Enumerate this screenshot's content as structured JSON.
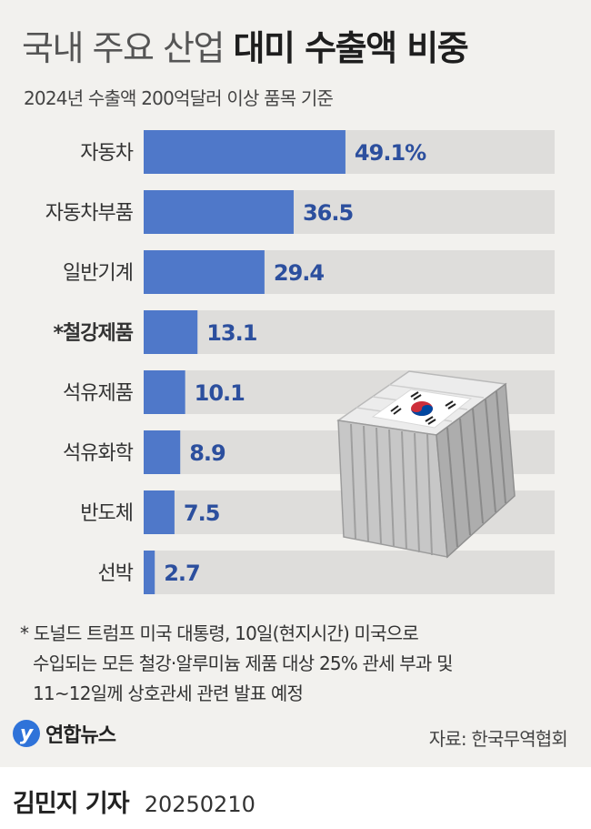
{
  "header": {
    "title_light": "국내 주요 산업",
    "title_bold": "대미 수출액 비중",
    "subtitle": "2024년 수출액 200억달러 이상 품목 기준"
  },
  "chart_data": {
    "type": "bar",
    "orientation": "horizontal",
    "categories": [
      "자동차",
      "자동차부품",
      "일반기계",
      "*철강제품",
      "석유제품",
      "석유화학",
      "반도체",
      "선박"
    ],
    "values": [
      49.1,
      36.5,
      29.4,
      13.1,
      10.1,
      8.9,
      7.5,
      2.7
    ],
    "value_labels": [
      "49.1%",
      "36.5",
      "29.4",
      "13.1",
      "10.1",
      "8.9",
      "7.5",
      "2.7"
    ],
    "highlighted": [
      false,
      false,
      false,
      true,
      false,
      false,
      false,
      false
    ],
    "xlim": [
      0,
      100
    ],
    "grid": false,
    "colors": {
      "bar": "#4f78c9",
      "track": "#dedddb",
      "value_text": "#2c4f9e"
    }
  },
  "note": {
    "lines": [
      "* 도널드 트럼프 미국 대통령, 10일(현지시간) 미국으로",
      "수입되는 모든 철강·알루미늄 제품 대상 25% 관세 부과 및",
      "11~12일께 상호관세 관련 발표 예정"
    ]
  },
  "logo": {
    "mark": "y",
    "text": "연합뉴스"
  },
  "source": "자료: 한국무역협회",
  "footer": {
    "reporter": "김민지 기자",
    "date": "20250210"
  },
  "illustration": {
    "name": "shipping-container-icon",
    "flag": "korean-flag-icon"
  }
}
